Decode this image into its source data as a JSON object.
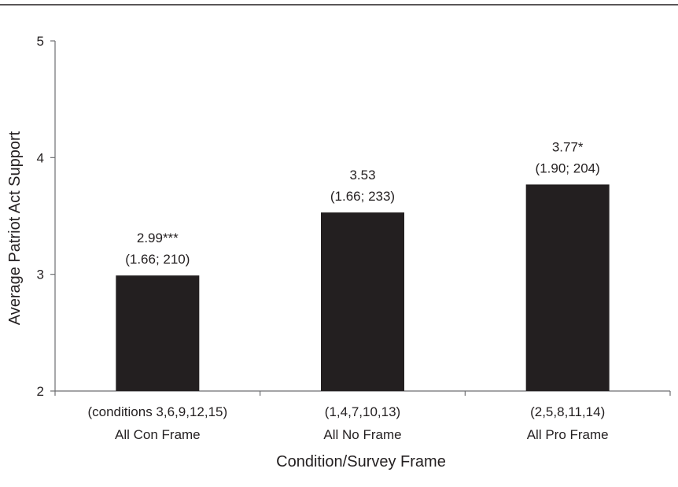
{
  "chart_data": {
    "type": "bar",
    "title": "",
    "xlabel": "Condition/Survey Frame",
    "ylabel": "Average Patriot Act Support",
    "ylim": [
      2,
      5
    ],
    "yticks": [
      2,
      3,
      4,
      5
    ],
    "grid": false,
    "categories": [
      {
        "line1": "(conditions 3,6,9,12,15)",
        "line2": "All Con Frame"
      },
      {
        "line1": "(1,4,7,10,13)",
        "line2": "All No Frame"
      },
      {
        "line1": "(2,5,8,11,14)",
        "line2": "All Pro Frame"
      }
    ],
    "values": [
      2.99,
      3.53,
      3.77
    ],
    "labels": [
      {
        "main": "2.99***",
        "sub": "(1.66; 210)"
      },
      {
        "main": "3.53",
        "sub": "(1.66; 233)"
      },
      {
        "main": "3.77*",
        "sub": "(1.90; 204)"
      }
    ],
    "colors": {
      "bar": "#231f20",
      "axis": "#6d6e71"
    }
  }
}
